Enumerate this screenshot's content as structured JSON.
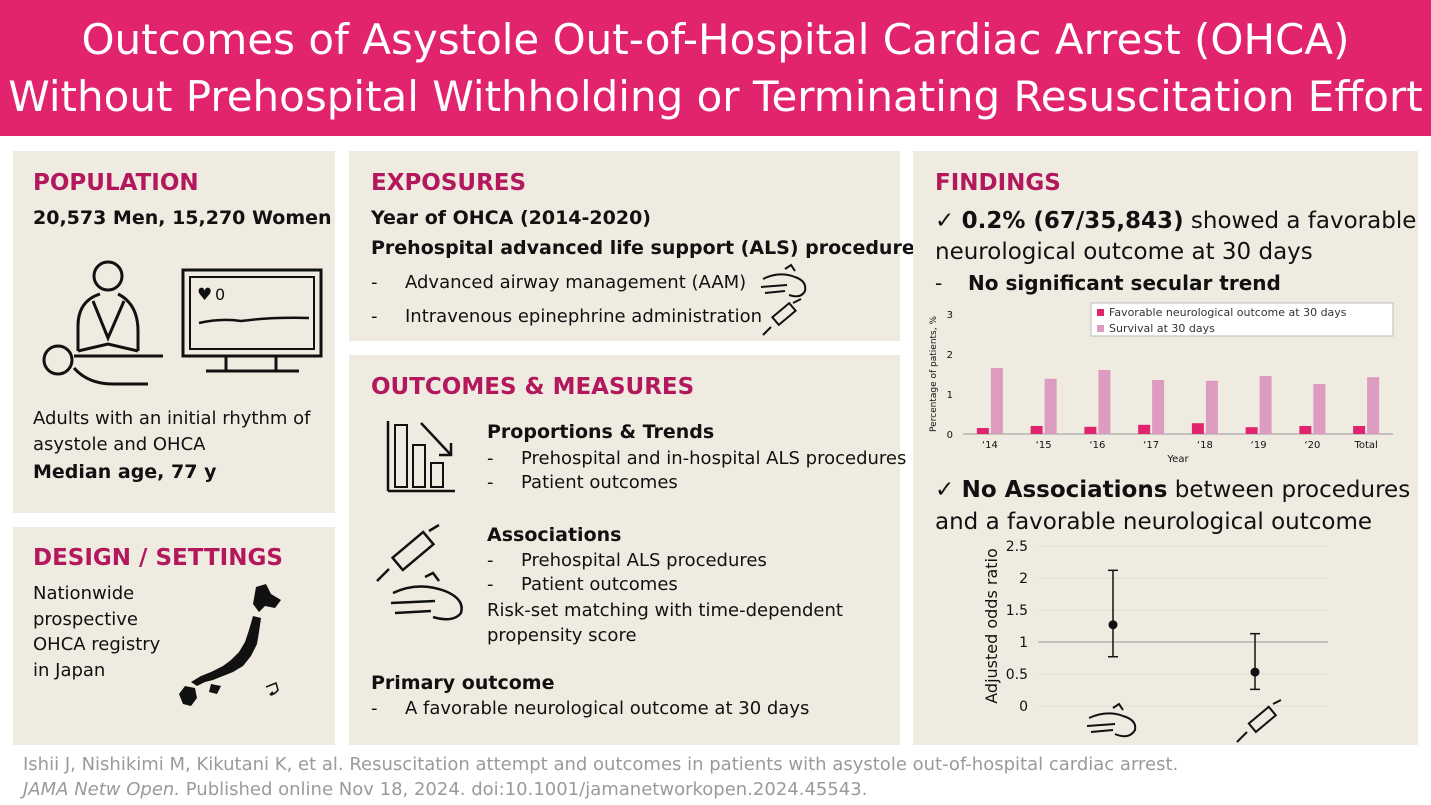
{
  "title": {
    "line1": "Outcomes of Asystole Out-of-Hospital Cardiac Arrest (OHCA)",
    "line2": "Without Prehospital Withholding or Terminating Resuscitation Effort"
  },
  "population": {
    "heading": "POPULATION",
    "counts": "20,573 Men, 15,270 Women",
    "monitor_value": "0",
    "desc_line1": "Adults with an initial rhythm of",
    "desc_line2": "asystole and OHCA",
    "median_age": "Median age, 77 y"
  },
  "design": {
    "heading": "DESIGN / SETTINGS",
    "line1": "Nationwide",
    "line2": "prospective",
    "line3": "OHCA registry",
    "line4": "in Japan"
  },
  "exposures": {
    "heading": "EXPOSURES",
    "line1": "Year of OHCA (2014-2020)",
    "line2": "Prehospital advanced life support (ALS) procedures",
    "bullets": [
      "Advanced airway management (AAM)",
      "Intravenous epinephrine administration"
    ]
  },
  "outcomes": {
    "heading": "OUTCOMES & MEASURES",
    "prop_title": "Proportions & Trends",
    "prop_bullets": [
      "Prehospital and in-hospital ALS procedures",
      "Patient outcomes"
    ],
    "assoc_title": "Associations",
    "assoc_bullets": [
      "Prehospital ALS procedures",
      "Patient outcomes"
    ],
    "risk_line1": "Risk-set matching with time-dependent",
    "risk_line2": "propensity score",
    "primary_title": "Primary outcome",
    "primary_bullet": "A favorable neurological outcome at 30 days"
  },
  "findings": {
    "heading": "FINDINGS",
    "check": "✓",
    "f1_bold": "0.2%  (67/35,843)",
    "f1_rest": " showed a favorable",
    "f1_line2": "neurological outcome at 30 days",
    "f1_sub": "No significant secular trend",
    "f2_bold": "No Associations",
    "f2_rest": " between procedures",
    "f2_line2": "and a favorable neurological outcome"
  },
  "chart_data": [
    {
      "type": "bar",
      "xlabel": "Year",
      "ylabel": "Percentage of patients, %",
      "ylim": [
        0,
        3
      ],
      "yticks": [
        "0",
        "1",
        "2",
        "3"
      ],
      "categories": [
        "‘14",
        "‘15",
        "‘16",
        "‘17",
        "‘18",
        "‘19",
        "‘20",
        "Total"
      ],
      "legend_placement": "top-right",
      "series": [
        {
          "name": "Favorable neurological outcome at 30 days",
          "color": "#e2246f",
          "values": [
            0.15,
            0.2,
            0.18,
            0.23,
            0.27,
            0.17,
            0.2,
            0.2
          ]
        },
        {
          "name": "Survival at 30 days",
          "color": "#dc9bbf",
          "values": [
            1.65,
            1.38,
            1.6,
            1.35,
            1.33,
            1.45,
            1.25,
            1.42
          ]
        }
      ]
    },
    {
      "type": "scatter",
      "ylabel": "Adjusted odds ratio",
      "ylim": [
        0,
        2.5
      ],
      "yticks": [
        "0",
        "0.5",
        "1",
        "1.5",
        "2",
        "2.5"
      ],
      "reference_line": 1,
      "categories": [
        "Advanced airway management",
        "Intravenous epinephrine administration"
      ],
      "points": [
        {
          "estimate": 1.27,
          "lower": 0.77,
          "upper": 2.12
        },
        {
          "estimate": 0.53,
          "lower": 0.26,
          "upper": 1.13
        }
      ]
    }
  ],
  "citation": {
    "line1": "Ishii J, Nishikimi M, Kikutani K, et al. Resuscitation attempt and outcomes in patients with asystole out-of-hospital cardiac arrest.",
    "journal": "JAMA Netw Open.",
    "line2_rest": " Published online Nov 18, 2024. doi:10.1001/jamanetworkopen.2024.45543."
  }
}
